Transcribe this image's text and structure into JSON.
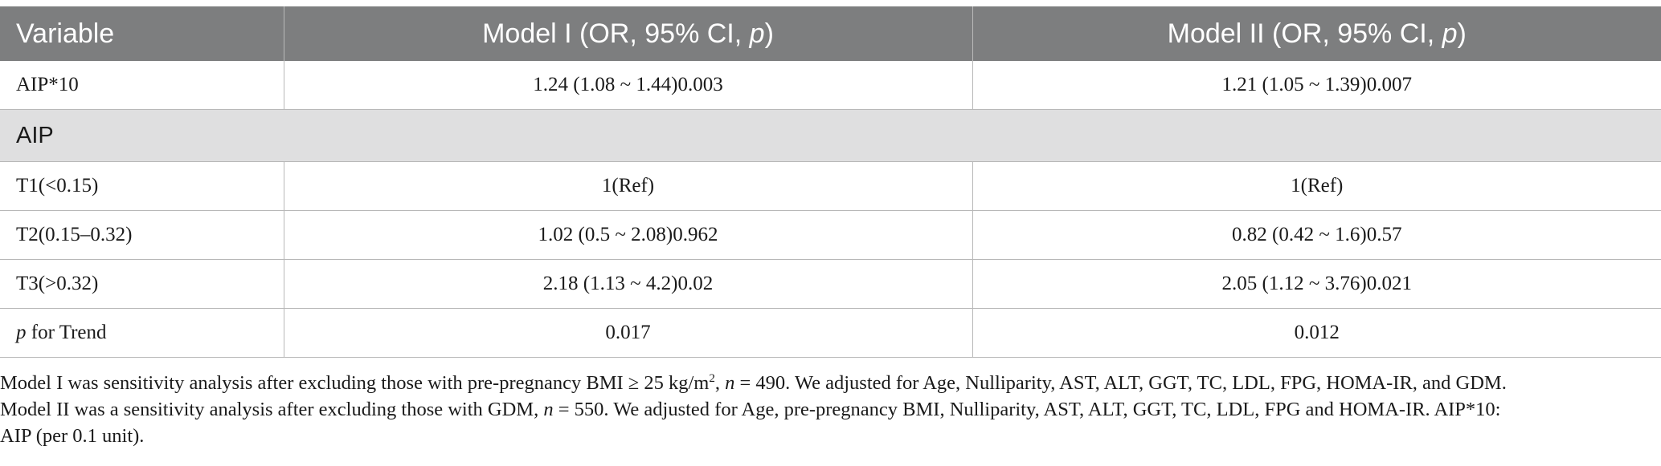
{
  "table": {
    "headers": {
      "variable": "Variable",
      "model1_prefix": "Model I (OR, 95% CI, ",
      "model1_p": "p",
      "model1_suffix": ")",
      "model2_prefix": "Model II (OR, 95% CI, ",
      "model2_p": "p",
      "model2_suffix": ")"
    },
    "rows": [
      {
        "variable": "AIP*10",
        "model1": "1.24 (1.08 ~ 1.44)0.003",
        "model2": "1.21 (1.05 ~ 1.39)0.007"
      },
      {
        "section": "AIP"
      },
      {
        "variable": "T1(<0.15)",
        "model1": "1(Ref)",
        "model2": "1(Ref)"
      },
      {
        "variable": "T2(0.15–0.32)",
        "model1": "1.02 (0.5 ~ 2.08)0.962",
        "model2": "0.82 (0.42 ~ 1.6)0.57"
      },
      {
        "variable": "T3(>0.32)",
        "model1": "2.18 (1.13 ~ 4.2)0.02",
        "model2": "2.05 (1.12 ~ 3.76)0.021"
      },
      {
        "variable_italic": "p",
        "variable_rest": " for Trend",
        "model1": "0.017",
        "model2": "0.012"
      }
    ]
  },
  "notes": {
    "line1_a": "Model I was sensitivity analysis after excluding those with pre-pregnancy BMI ≥ 25 kg/m",
    "line1_sup": "2",
    "line1_b": ", ",
    "line1_n": "n",
    "line1_c": " = 490. We adjusted for Age, Nulliparity, AST, ALT, GGT, TC, LDL, FPG, HOMA-IR, and GDM.",
    "line2_a": "Model II was a sensitivity analysis after excluding those with GDM, ",
    "line2_n": "n",
    "line2_b": " = 550. We adjusted for Age, pre-pregnancy BMI, Nulliparity, AST, ALT, GGT, TC, LDL, FPG and HOMA-IR. AIP*10:",
    "line3": "AIP (per 0.1 unit)."
  }
}
